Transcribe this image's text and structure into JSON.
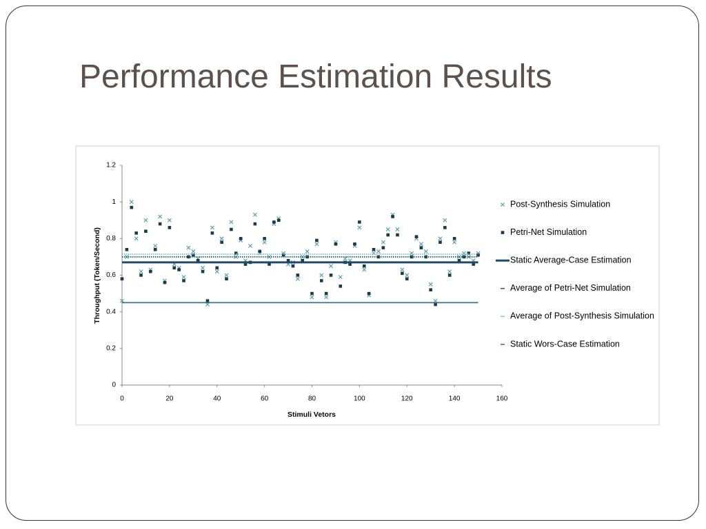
{
  "slide": {
    "title": "Performance Estimation Results"
  },
  "chart_data": {
    "type": "scatter",
    "xlabel": "Stimuli Vetors",
    "ylabel": "Throughput (Token/Second)",
    "xlim": [
      0,
      160
    ],
    "xticks": [
      0,
      20,
      40,
      60,
      80,
      100,
      120,
      140,
      160
    ],
    "ylim": [
      0,
      1.2
    ],
    "yticks": [
      0,
      0.2,
      0.4,
      0.6,
      0.8,
      1,
      1.2
    ],
    "grid": false,
    "legend": "right",
    "x": [
      0,
      2,
      4,
      6,
      8,
      10,
      12,
      14,
      16,
      18,
      20,
      22,
      24,
      26,
      28,
      30,
      32,
      34,
      36,
      38,
      40,
      42,
      44,
      46,
      48,
      50,
      52,
      54,
      56,
      58,
      60,
      62,
      64,
      66,
      68,
      70,
      72,
      74,
      76,
      78,
      80,
      82,
      84,
      86,
      88,
      90,
      92,
      94,
      96,
      98,
      100,
      102,
      104,
      106,
      108,
      110,
      112,
      114,
      116,
      118,
      120,
      122,
      124,
      126,
      128,
      130,
      132,
      134,
      136,
      138,
      140,
      142,
      144,
      146,
      148,
      150
    ],
    "series": [
      {
        "name": "Post-Synthesis Simulation",
        "marker": "x",
        "color": "#5f9ea8",
        "values": [
          0.46,
          0.7,
          1.0,
          0.8,
          0.62,
          0.9,
          0.63,
          0.76,
          0.92,
          0.57,
          0.9,
          0.66,
          0.64,
          0.59,
          0.75,
          0.73,
          0.69,
          0.64,
          0.44,
          0.86,
          0.62,
          0.8,
          0.6,
          0.89,
          0.7,
          0.79,
          0.68,
          0.76,
          0.93,
          0.72,
          0.78,
          0.7,
          0.88,
          0.91,
          0.72,
          0.66,
          0.67,
          0.58,
          0.7,
          0.73,
          0.48,
          0.77,
          0.6,
          0.48,
          0.65,
          0.78,
          0.59,
          0.69,
          0.68,
          0.76,
          0.86,
          0.63,
          0.49,
          0.72,
          0.73,
          0.78,
          0.85,
          0.93,
          0.85,
          0.63,
          0.6,
          0.72,
          0.8,
          0.77,
          0.73,
          0.55,
          0.46,
          0.8,
          0.9,
          0.62,
          0.78,
          0.7,
          0.72,
          0.7,
          0.68,
          0.72
        ]
      },
      {
        "name": "Petri-Net Simulation",
        "marker": "square",
        "color": "#1c3b4a",
        "values": [
          0.58,
          0.74,
          0.97,
          0.83,
          0.6,
          0.84,
          0.62,
          0.74,
          0.88,
          0.56,
          0.86,
          0.64,
          0.63,
          0.57,
          0.7,
          0.71,
          0.68,
          0.62,
          0.46,
          0.83,
          0.64,
          0.78,
          0.58,
          0.85,
          0.72,
          0.8,
          0.66,
          0.67,
          0.88,
          0.73,
          0.8,
          0.66,
          0.89,
          0.9,
          0.71,
          0.68,
          0.65,
          0.6,
          0.68,
          0.7,
          0.5,
          0.79,
          0.57,
          0.5,
          0.6,
          0.77,
          0.54,
          0.67,
          0.66,
          0.77,
          0.89,
          0.65,
          0.5,
          0.74,
          0.7,
          0.75,
          0.82,
          0.92,
          0.82,
          0.61,
          0.58,
          0.7,
          0.81,
          0.75,
          0.7,
          0.52,
          0.44,
          0.78,
          0.86,
          0.6,
          0.8,
          0.68,
          0.7,
          0.72,
          0.66,
          0.71
        ]
      },
      {
        "name": "Static Average-Case Estimation",
        "marker": "line",
        "line_style": "solid",
        "color": "#1f4a6e",
        "x": [
          0,
          150
        ],
        "values": [
          0.67,
          0.67
        ]
      },
      {
        "name": "Average of Petri-Net Simulation",
        "marker": "line",
        "line_style": "dotted",
        "color": "#2e5d6e",
        "x": [
          0,
          150
        ],
        "values": [
          0.7,
          0.7
        ]
      },
      {
        "name": "Average of Post-Synthesis Simulation",
        "marker": "line",
        "line_style": "dotted",
        "color": "#8cc0cc",
        "x": [
          0,
          150
        ],
        "values": [
          0.715,
          0.715
        ]
      },
      {
        "name": "Static Wors-Case Estimation",
        "marker": "line",
        "line_style": "solid",
        "color": "#3a6f84",
        "x": [
          0,
          150
        ],
        "values": [
          0.45,
          0.45
        ]
      }
    ]
  }
}
